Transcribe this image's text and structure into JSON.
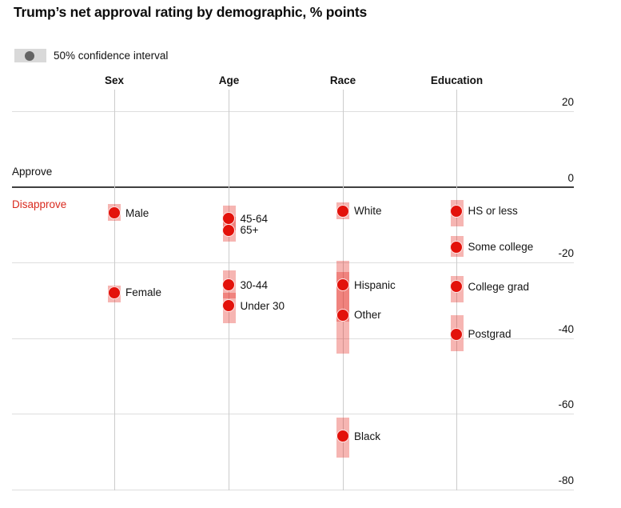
{
  "title": "Trump’s net approval rating by demographic, % points",
  "legend": {
    "label": "50% confidence interval",
    "swatch_color": "#d9d9d9",
    "dot_color": "#646464"
  },
  "annotations": {
    "approve": "Approve",
    "disapprove": "Disapprove"
  },
  "colors": {
    "dot": "#e3120b",
    "band": "rgba(227,30,22,0.33)",
    "grid": "#dedede",
    "zero_line": "#404040",
    "column_line": "#cccccc",
    "text": "#111111",
    "disapprove_text": "#d92a1e"
  },
  "chart_data": {
    "type": "scatter",
    "title": "Trump’s net approval rating by demographic, % points",
    "ylabel": "% points",
    "ylim": [
      -80,
      20
    ],
    "yticks": [
      20,
      0,
      -20,
      -40,
      -60,
      -80
    ],
    "grid": true,
    "legend_position": "top-left",
    "groups": [
      {
        "label": "Sex",
        "points": [
          {
            "label": "Male",
            "value": -7,
            "ci": [
              -4.5,
              -9
            ]
          },
          {
            "label": "Female",
            "value": -28,
            "ci": [
              -26,
              -30.5
            ]
          }
        ]
      },
      {
        "label": "Age",
        "points": [
          {
            "label": "45-64",
            "value": -8.5,
            "ci": [
              -5,
              -11.5
            ]
          },
          {
            "label": "65+",
            "value": -11.5,
            "ci": [
              -8,
              -14.5
            ]
          },
          {
            "label": "30-44",
            "value": -26,
            "ci": [
              -22,
              -29.5
            ]
          },
          {
            "label": "Under 30",
            "value": -31.5,
            "ci": [
              -28,
              -36
            ]
          }
        ]
      },
      {
        "label": "Race",
        "points": [
          {
            "label": "White",
            "value": -6.5,
            "ci": [
              -4,
              -8.5
            ]
          },
          {
            "label": "Hispanic",
            "value": -26,
            "ci": [
              -19.5,
              -35.5
            ]
          },
          {
            "label": "Other",
            "value": -34,
            "ci": [
              -22.5,
              -44
            ]
          },
          {
            "label": "Black",
            "value": -66,
            "ci": [
              -61,
              -71.5
            ]
          }
        ]
      },
      {
        "label": "Education",
        "points": [
          {
            "label": "HS or less",
            "value": -6.5,
            "ci": [
              -3.5,
              -10.5
            ]
          },
          {
            "label": "Some college",
            "value": -16,
            "ci": [
              -13,
              -18.5
            ]
          },
          {
            "label": "College grad",
            "value": -26.5,
            "ci": [
              -23.5,
              -30.5
            ]
          },
          {
            "label": "Postgrad",
            "value": -39,
            "ci": [
              -34,
              -43.5
            ]
          }
        ]
      }
    ]
  }
}
